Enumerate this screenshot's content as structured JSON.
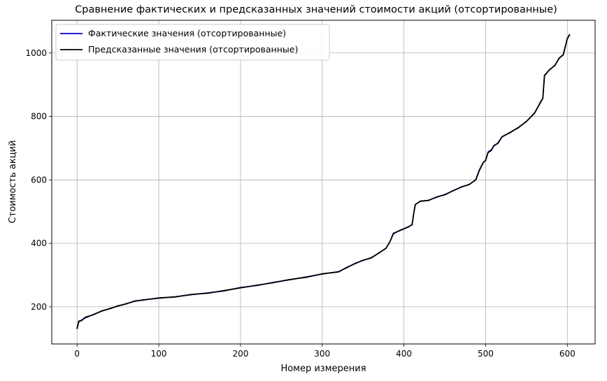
{
  "chart_data": {
    "type": "line",
    "title": "Сравнение фактических и предсказанных значений стоимости акций (отсортированные)",
    "xlabel": "Номер измерения",
    "ylabel": "Стоимость акций",
    "xlim": [
      -31,
      634
    ],
    "ylim": [
      83,
      1103
    ],
    "xticks": [
      0,
      100,
      200,
      300,
      400,
      500,
      600
    ],
    "yticks": [
      200,
      400,
      600,
      800,
      1000
    ],
    "grid": true,
    "legend_position": "top-left",
    "series": [
      {
        "name": "Фактические значения (отсортированные)",
        "color": "#0000cc",
        "points": [
          [
            0,
            133
          ],
          [
            2,
            152
          ],
          [
            5,
            158
          ],
          [
            10,
            165
          ],
          [
            20,
            176
          ],
          [
            30,
            186
          ],
          [
            40,
            195
          ],
          [
            50,
            202
          ],
          [
            60,
            210
          ],
          [
            70,
            217
          ],
          [
            80,
            222
          ],
          [
            100,
            227
          ],
          [
            120,
            232
          ],
          [
            140,
            238
          ],
          [
            160,
            244
          ],
          [
            180,
            250
          ],
          [
            200,
            261
          ],
          [
            220,
            267
          ],
          [
            240,
            277
          ],
          [
            260,
            285
          ],
          [
            280,
            294
          ],
          [
            300,
            303
          ],
          [
            320,
            311
          ],
          [
            330,
            323
          ],
          [
            340,
            337
          ],
          [
            350,
            346
          ],
          [
            360,
            355
          ],
          [
            370,
            370
          ],
          [
            378,
            385
          ],
          [
            383,
            405
          ],
          [
            387,
            432
          ],
          [
            395,
            440
          ],
          [
            405,
            452
          ],
          [
            410,
            458
          ],
          [
            412,
            495
          ],
          [
            414,
            523
          ],
          [
            420,
            532
          ],
          [
            430,
            536
          ],
          [
            440,
            545
          ],
          [
            450,
            554
          ],
          [
            460,
            565
          ],
          [
            470,
            578
          ],
          [
            480,
            585
          ],
          [
            488,
            601
          ],
          [
            492,
            630
          ],
          [
            497,
            655
          ],
          [
            500,
            660
          ],
          [
            503,
            688
          ],
          [
            507,
            695
          ],
          [
            510,
            706
          ],
          [
            515,
            717
          ],
          [
            520,
            735
          ],
          [
            530,
            750
          ],
          [
            540,
            764
          ],
          [
            550,
            785
          ],
          [
            560,
            810
          ],
          [
            568,
            850
          ],
          [
            570,
            856
          ],
          [
            572,
            930
          ],
          [
            578,
            946
          ],
          [
            585,
            962
          ],
          [
            590,
            983
          ],
          [
            595,
            995
          ],
          [
            598,
            1025
          ],
          [
            600,
            1045
          ],
          [
            603,
            1058
          ]
        ]
      },
      {
        "name": "Предсказанные значения (отсортированные)",
        "color": "#000000",
        "points": [
          [
            0,
            130
          ],
          [
            2,
            155
          ],
          [
            5,
            156
          ],
          [
            10,
            167
          ],
          [
            20,
            175
          ],
          [
            30,
            187
          ],
          [
            40,
            194
          ],
          [
            50,
            203
          ],
          [
            60,
            209
          ],
          [
            70,
            218
          ],
          [
            80,
            221
          ],
          [
            100,
            228
          ],
          [
            120,
            231
          ],
          [
            140,
            239
          ],
          [
            160,
            243
          ],
          [
            180,
            251
          ],
          [
            200,
            260
          ],
          [
            220,
            268
          ],
          [
            240,
            276
          ],
          [
            260,
            286
          ],
          [
            280,
            293
          ],
          [
            300,
            304
          ],
          [
            320,
            310
          ],
          [
            330,
            324
          ],
          [
            340,
            336
          ],
          [
            350,
            347
          ],
          [
            360,
            354
          ],
          [
            370,
            371
          ],
          [
            378,
            384
          ],
          [
            383,
            406
          ],
          [
            387,
            430
          ],
          [
            395,
            441
          ],
          [
            405,
            451
          ],
          [
            410,
            459
          ],
          [
            412,
            494
          ],
          [
            414,
            522
          ],
          [
            420,
            533
          ],
          [
            430,
            535
          ],
          [
            440,
            546
          ],
          [
            450,
            553
          ],
          [
            460,
            566
          ],
          [
            470,
            577
          ],
          [
            480,
            586
          ],
          [
            488,
            600
          ],
          [
            492,
            628
          ],
          [
            497,
            654
          ],
          [
            500,
            662
          ],
          [
            503,
            686
          ],
          [
            507,
            693
          ],
          [
            510,
            708
          ],
          [
            515,
            715
          ],
          [
            520,
            736
          ],
          [
            530,
            749
          ],
          [
            540,
            765
          ],
          [
            550,
            784
          ],
          [
            560,
            811
          ],
          [
            568,
            848
          ],
          [
            570,
            857
          ],
          [
            572,
            928
          ],
          [
            578,
            947
          ],
          [
            585,
            961
          ],
          [
            590,
            984
          ],
          [
            595,
            994
          ],
          [
            598,
            1024
          ],
          [
            600,
            1046
          ],
          [
            603,
            1059
          ]
        ]
      }
    ]
  }
}
